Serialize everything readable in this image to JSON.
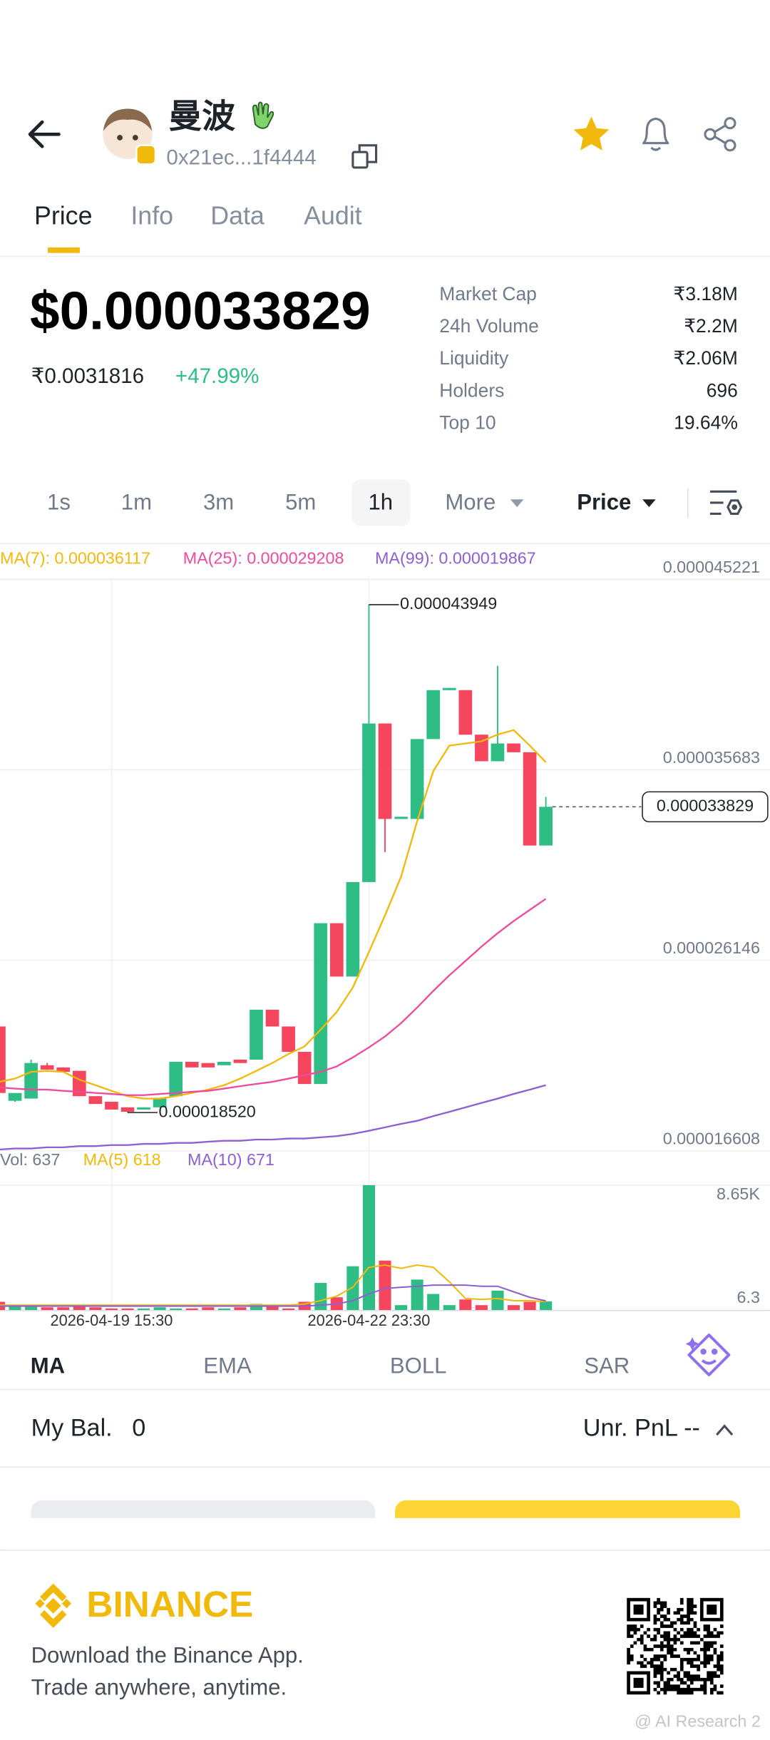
{
  "header": {
    "name": "曼波",
    "address": "0x21ec...1f4444"
  },
  "tabs": [
    "Price",
    "Info",
    "Data",
    "Audit"
  ],
  "price": {
    "usd": "$0.000033829",
    "inr": "₹0.0031816",
    "change": "+47.99%"
  },
  "stats": [
    {
      "label": "Market Cap",
      "value": "₹3.18M"
    },
    {
      "label": "24h Volume",
      "value": "₹2.2M"
    },
    {
      "label": "Liquidity",
      "value": "₹2.06M"
    },
    {
      "label": "Holders",
      "value": "696"
    },
    {
      "label": "Top 10",
      "value": "19.64%"
    }
  ],
  "intervals": [
    "1s",
    "1m",
    "3m",
    "5m",
    "1h",
    "More"
  ],
  "price_mode": "Price",
  "chart_data": [
    {
      "type": "candlestick",
      "up_color": "#2ebd85",
      "down_color": "#f6465d",
      "categories": [
        null,
        null,
        null,
        null,
        null,
        null,
        null,
        "2026-04-19 15:30",
        null,
        null,
        null,
        null,
        null,
        null,
        null,
        null,
        null,
        null,
        null,
        null,
        null,
        null,
        null,
        "2026-04-22 23:30",
        null,
        null,
        null,
        null,
        null,
        null,
        null,
        null,
        null,
        null,
        null
      ],
      "open": [
        2.283e-05,
        1.911e-05,
        1.922e-05,
        2.089e-05,
        2.078e-05,
        2.061e-05,
        1.934e-05,
        1.906e-05,
        1.878e-05,
        1.867e-05,
        1.878e-05,
        1.934e-05,
        2.106e-05,
        2.1e-05,
        2.089e-05,
        2.117e-05,
        2.117e-05,
        2.367e-05,
        2.283e-05,
        2.156e-05,
        1.995e-05,
        2.8e-05,
        2.533e-05,
        3.006e-05,
        3.8e-05,
        3.322e-05,
        3.322e-05,
        3.722e-05,
        3.967e-05,
        3.967e-05,
        3.744e-05,
        3.611e-05,
        3.7e-05,
        3.656e-05,
        3.189e-05
      ],
      "high": [
        2.283e-05,
        1.95e-05,
        2.117e-05,
        2.1e-05,
        2.078e-05,
        2.061e-05,
        1.934e-05,
        1.906e-05,
        1.878e-05,
        1.878e-05,
        1.922e-05,
        2.106e-05,
        2.106e-05,
        2.1e-05,
        2.106e-05,
        2.117e-05,
        2.367e-05,
        2.367e-05,
        2.283e-05,
        2.156e-05,
        2.8e-05,
        2.8e-05,
        3.006e-05,
        4.3949e-05,
        3.8e-05,
        3.333e-05,
        3.722e-05,
        3.967e-05,
        3.978e-05,
        3.967e-05,
        3.744e-05,
        4.089e-05,
        3.7e-05,
        3.656e-05,
        3.433e-05
      ],
      "low": [
        1.922e-05,
        1.906e-05,
        1.922e-05,
        2.067e-05,
        2.056e-05,
        1.934e-05,
        1.895e-05,
        1.867e-05,
        1.852e-05,
        1.867e-05,
        1.878e-05,
        1.934e-05,
        2.078e-05,
        2.078e-05,
        2.089e-05,
        2.1e-05,
        2.117e-05,
        2.283e-05,
        2.156e-05,
        1.995e-05,
        1.995e-05,
        2.533e-05,
        2.533e-05,
        3.006e-05,
        3.156e-05,
        3.322e-05,
        3.322e-05,
        3.722e-05,
        3.967e-05,
        3.744e-05,
        3.611e-05,
        3.611e-05,
        3.656e-05,
        3.189e-05,
        3.189e-05
      ],
      "close": [
        1.95e-05,
        1.95e-05,
        2.1e-05,
        2.067e-05,
        2.056e-05,
        1.934e-05,
        1.895e-05,
        1.867e-05,
        1.856e-05,
        1.878e-05,
        1.922e-05,
        2.106e-05,
        2.078e-05,
        2.078e-05,
        2.106e-05,
        2.1e-05,
        2.367e-05,
        2.283e-05,
        2.156e-05,
        1.995e-05,
        2.8e-05,
        2.533e-05,
        3.006e-05,
        3.8e-05,
        3.322e-05,
        3.333e-05,
        3.722e-05,
        3.967e-05,
        3.978e-05,
        3.744e-05,
        3.611e-05,
        3.7e-05,
        3.656e-05,
        3.189e-05,
        3.3829e-05
      ],
      "series": [
        {
          "name": "MA(7): 0.000036117",
          "color": "#f0b90b",
          "values": [
            2.006e-05,
            2.022e-05,
            2.056e-05,
            2.061e-05,
            2.056e-05,
            2.017e-05,
            1.989e-05,
            1.961e-05,
            1.934e-05,
            1.922e-05,
            1.922e-05,
            1.934e-05,
            1.95e-05,
            1.967e-05,
            1.989e-05,
            2.022e-05,
            2.061e-05,
            2.1e-05,
            2.145e-05,
            2.183e-05,
            2.267e-05,
            2.356e-05,
            2.478e-05,
            2.656e-05,
            2.839e-05,
            3.033e-05,
            3.311e-05,
            3.561e-05,
            3.689e-05,
            3.7e-05,
            3.711e-05,
            3.744e-05,
            3.767e-05,
            3.689e-05,
            3.606e-05
          ]
        },
        {
          "name": "MA(25): 0.000029208",
          "color": "#ee4aa0",
          "values": [
            1.978e-05,
            1.972e-05,
            1.967e-05,
            1.967e-05,
            1.961e-05,
            1.956e-05,
            1.95e-05,
            1.945e-05,
            1.939e-05,
            1.939e-05,
            1.945e-05,
            1.95e-05,
            1.956e-05,
            1.961e-05,
            1.972e-05,
            1.984e-05,
            1.995e-05,
            2.006e-05,
            2.022e-05,
            2.039e-05,
            2.056e-05,
            2.083e-05,
            2.128e-05,
            2.178e-05,
            2.233e-05,
            2.3e-05,
            2.378e-05,
            2.461e-05,
            2.539e-05,
            2.611e-05,
            2.683e-05,
            2.75e-05,
            2.811e-05,
            2.867e-05,
            2.922e-05
          ]
        },
        {
          "name": "MA(99): 0.000019867",
          "color": "#8e5fd0",
          "values": [
            1.667e-05,
            1.672e-05,
            1.672e-05,
            1.678e-05,
            1.678e-05,
            1.684e-05,
            1.684e-05,
            1.689e-05,
            1.689e-05,
            1.695e-05,
            1.695e-05,
            1.7e-05,
            1.7e-05,
            1.706e-05,
            1.711e-05,
            1.711e-05,
            1.717e-05,
            1.717e-05,
            1.722e-05,
            1.722e-05,
            1.728e-05,
            1.734e-05,
            1.745e-05,
            1.761e-05,
            1.778e-05,
            1.795e-05,
            1.811e-05,
            1.834e-05,
            1.856e-05,
            1.878e-05,
            1.9e-05,
            1.922e-05,
            1.945e-05,
            1.967e-05,
            1.989e-05
          ]
        }
      ],
      "ylim": [
        1.6608e-05,
        4.5221e-05
      ],
      "yticks": [
        4.5221e-05,
        3.5683e-05,
        2.6146e-05,
        1.6608e-05
      ],
      "high_label": 4.3949e-05,
      "low_label": {
        "value": 1.852e-05,
        "label": "0.000018520"
      },
      "last_price": 3.3829e-05
    },
    {
      "type": "bar",
      "name": "Vol: 637",
      "values": [
        610,
        380,
        310,
        230,
        230,
        310,
        230,
        150,
        150,
        150,
        230,
        150,
        150,
        230,
        150,
        230,
        460,
        380,
        150,
        610,
        1910,
        920,
        3060,
        8650,
        3450,
        380,
        2140,
        1150,
        380,
        770,
        380,
        1380,
        380,
        610,
        637
      ],
      "series": [
        {
          "name": "MA(5) 618",
          "color": "#f0b90b",
          "values": [
            380,
            380,
            380,
            380,
            380,
            380,
            380,
            380,
            380,
            380,
            380,
            380,
            380,
            380,
            380,
            380,
            380,
            380,
            380,
            460,
            690,
            1000,
            1610,
            2990,
            3140,
            2910,
            3140,
            2990,
            1990,
            840,
            770,
            840,
            690,
            690,
            618
          ]
        },
        {
          "name": "MA(10) 671",
          "color": "#8e5fd0",
          "values": [
            310,
            310,
            310,
            310,
            310,
            310,
            310,
            310,
            310,
            310,
            310,
            310,
            310,
            310,
            310,
            310,
            310,
            310,
            310,
            310,
            380,
            460,
            690,
            1150,
            1530,
            1610,
            1680,
            1760,
            1760,
            1760,
            1680,
            1680,
            1300,
            920,
            671
          ]
        }
      ],
      "ylim": [
        6.3,
        8650
      ],
      "yticks": [
        {
          "value": 8650,
          "label": "8.65K"
        },
        6.3
      ]
    }
  ],
  "indicators": [
    "MA",
    "EMA",
    "BOLL",
    "SAR"
  ],
  "balance": {
    "label": "My Bal.",
    "value": "0",
    "pnl": "Unr. PnL --"
  },
  "footer": {
    "brand": "BINANCE",
    "line1": "Download the Binance App.",
    "line2": "Trade anywhere, anytime.",
    "watermark": "@ AI Research 2"
  }
}
